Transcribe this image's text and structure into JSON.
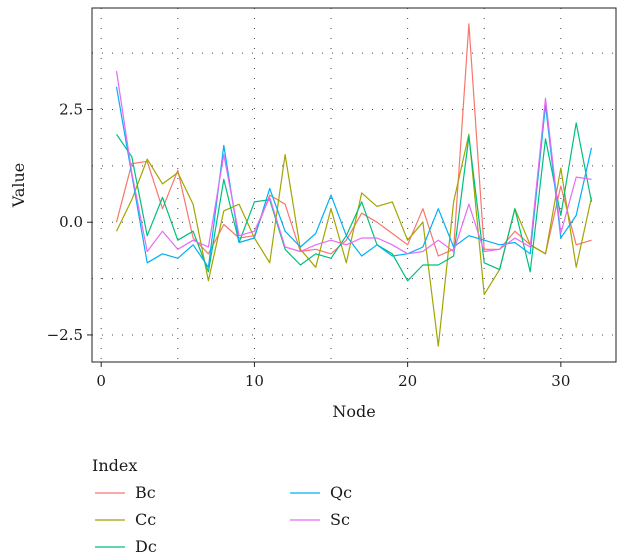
{
  "chart_data": {
    "type": "line",
    "title": "",
    "xlabel": "Node",
    "ylabel": "Value",
    "xlim": [
      -0.6,
      33.6
    ],
    "ylim": [
      -3.1,
      4.75
    ],
    "xticks": [
      0,
      10,
      20,
      30
    ],
    "xtick_labels": [
      "0",
      "10",
      "20",
      "30"
    ],
    "yticks": [
      -2.5,
      0.0,
      2.5
    ],
    "ytick_labels": [
      "−2.5",
      "0.0",
      "2.5"
    ],
    "grid": "dotted",
    "legend": {
      "title": "Index",
      "placement": "bottom"
    },
    "x": [
      1,
      2,
      3,
      4,
      5,
      6,
      7,
      8,
      9,
      10,
      11,
      12,
      13,
      14,
      15,
      16,
      17,
      18,
      19,
      20,
      21,
      22,
      23,
      24,
      25,
      26,
      27,
      28,
      29,
      30,
      31,
      32
    ],
    "series": [
      {
        "name": "Bc",
        "color": "#F8766D",
        "values": [
          0.0,
          1.3,
          1.35,
          0.3,
          1.15,
          -0.35,
          -0.7,
          -0.05,
          -0.35,
          -0.3,
          0.6,
          0.4,
          -0.65,
          -0.6,
          -0.7,
          -0.4,
          0.2,
          0.0,
          -0.25,
          -0.5,
          0.3,
          -0.75,
          -0.6,
          4.4,
          -0.6,
          -0.6,
          -0.2,
          -0.5,
          -0.7,
          0.8,
          -0.5,
          -0.4
        ]
      },
      {
        "name": "Cc",
        "color": "#A3A500",
        "values": [
          -0.2,
          0.5,
          1.4,
          0.85,
          1.1,
          0.4,
          -1.3,
          0.25,
          0.4,
          -0.35,
          -0.9,
          1.5,
          -0.6,
          -1.0,
          0.3,
          -0.9,
          0.65,
          0.35,
          0.45,
          -0.4,
          0.0,
          -2.75,
          0.45,
          1.95,
          -1.6,
          -1.05,
          0.3,
          -0.5,
          -0.7,
          1.2,
          -1.0,
          0.55
        ]
      },
      {
        "name": "Dc",
        "color": "#00BF7D",
        "values": [
          1.95,
          1.45,
          -0.3,
          0.55,
          -0.4,
          -0.2,
          -1.1,
          0.95,
          -0.45,
          0.45,
          0.5,
          -0.6,
          -0.95,
          -0.7,
          -0.8,
          -0.3,
          0.45,
          -0.5,
          -0.7,
          -1.3,
          -0.95,
          -0.95,
          -0.75,
          1.9,
          -0.9,
          -1.05,
          0.3,
          -1.1,
          1.85,
          0.15,
          2.2,
          0.45
        ]
      },
      {
        "name": "Qc",
        "color": "#00B0F6",
        "values": [
          3.0,
          1.05,
          -0.9,
          -0.7,
          -0.8,
          -0.5,
          -1.0,
          1.7,
          -0.45,
          -0.35,
          0.75,
          -0.2,
          -0.55,
          -0.25,
          0.6,
          -0.3,
          -0.75,
          -0.5,
          -0.75,
          -0.7,
          -0.55,
          0.3,
          -0.55,
          -0.3,
          -0.4,
          -0.5,
          -0.45,
          -0.7,
          2.6,
          -0.35,
          0.15,
          1.65
        ]
      },
      {
        "name": "Sc",
        "color": "#E76BF3",
        "values": [
          3.35,
          1.1,
          -0.65,
          -0.2,
          -0.6,
          -0.4,
          -0.55,
          1.5,
          -0.3,
          -0.2,
          0.55,
          -0.55,
          -0.65,
          -0.5,
          -0.4,
          -0.5,
          -0.35,
          -0.35,
          -0.5,
          -0.7,
          -0.65,
          -0.4,
          -0.65,
          0.4,
          -0.65,
          -0.6,
          -0.35,
          -0.55,
          2.75,
          -0.25,
          1.0,
          0.95
        ]
      }
    ]
  }
}
